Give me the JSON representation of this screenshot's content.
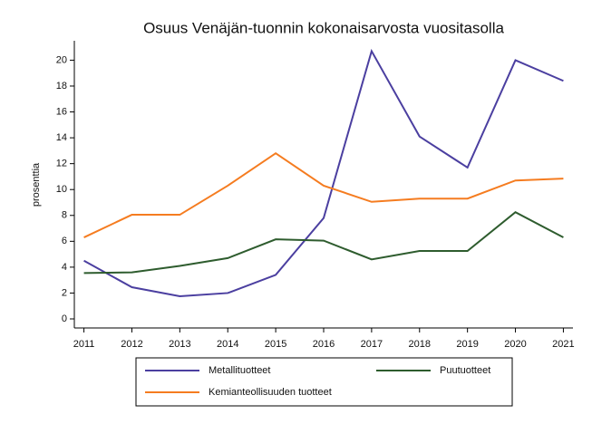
{
  "chart_data": {
    "type": "line",
    "title": "Osuus Venäjän-tuonnin kokonaisarvosta vuositasolla",
    "y_label": "prosenttia",
    "x": [
      2011,
      2012,
      2013,
      2014,
      2015,
      2016,
      2017,
      2018,
      2019,
      2020,
      2021
    ],
    "series": [
      {
        "name": "Metallituotteet",
        "color": "#4b3fa0",
        "values": [
          4.5,
          2.45,
          1.75,
          2.0,
          3.4,
          7.8,
          20.7,
          14.1,
          11.7,
          20.0,
          18.4
        ]
      },
      {
        "name": "Kemianteollisuuden tuotteet",
        "color": "#f57c20",
        "values": [
          6.3,
          8.05,
          8.05,
          10.3,
          12.8,
          10.3,
          9.05,
          9.3,
          9.3,
          10.7,
          10.85
        ]
      },
      {
        "name": "Puutuotteet",
        "color": "#2e5c2e",
        "values": [
          3.55,
          3.6,
          4.1,
          4.7,
          6.15,
          6.05,
          4.6,
          5.25,
          5.25,
          8.25,
          6.3
        ]
      }
    ],
    "xlim": [
      2010.8,
      2021.2
    ],
    "xticks": [
      2011,
      2012,
      2013,
      2014,
      2015,
      2016,
      2017,
      2018,
      2019,
      2020,
      2021
    ],
    "ylim": [
      -0.7,
      21.5
    ],
    "yticks": [
      0,
      2,
      4,
      6,
      8,
      10,
      12,
      14,
      16,
      18,
      20
    ],
    "grid": false,
    "legend": "bottom"
  }
}
